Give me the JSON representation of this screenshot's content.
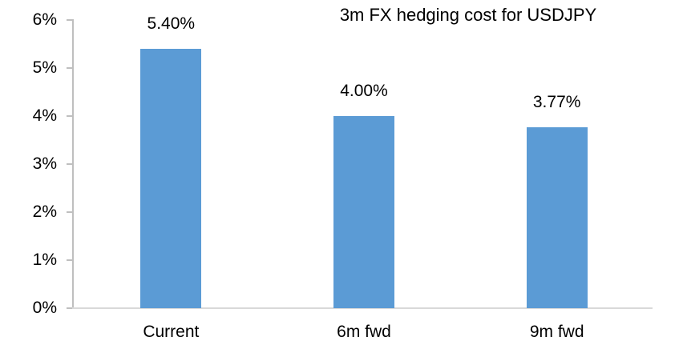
{
  "chart_data": {
    "type": "bar",
    "title": "3m FX hedging cost for USDJPY",
    "categories": [
      "Current",
      "6m fwd",
      "9m fwd"
    ],
    "values": [
      5.4,
      4.0,
      3.77
    ],
    "data_labels": [
      "5.40%",
      "4.00%",
      "3.77%"
    ],
    "xlabel": "",
    "ylabel": "",
    "ylim": [
      0,
      6
    ],
    "ytick_step": 1,
    "ytick_labels": [
      "0%",
      "1%",
      "2%",
      "3%",
      "4%",
      "5%",
      "6%"
    ],
    "grid": false,
    "legend": false,
    "colors": {
      "bar": "#5B9BD5",
      "y_axis_line": "#BFBFBF",
      "x_axis_line": "#D9D9D9",
      "text": "#000000",
      "background": "#FFFFFF"
    }
  }
}
